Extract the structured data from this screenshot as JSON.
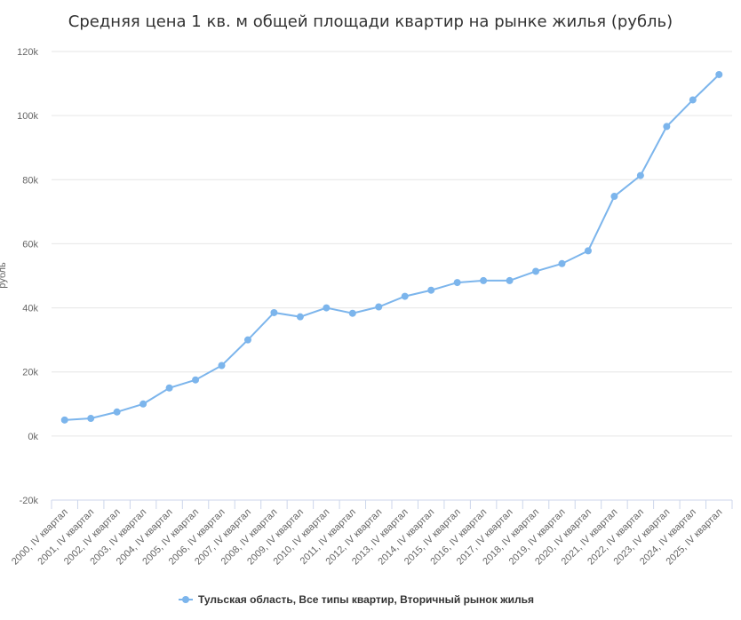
{
  "chart_data": {
    "type": "line",
    "title": "Средняя цена 1 кв. м общей площади квартир на рынке жилья (рубль)",
    "ylabel": "рубль",
    "ylim": [
      -20000,
      120000
    ],
    "yticks": [
      -20000,
      0,
      20000,
      40000,
      60000,
      80000,
      100000,
      120000
    ],
    "ytick_labels": [
      "-20k",
      "0k",
      "20k",
      "40k",
      "60k",
      "80k",
      "100k",
      "120k"
    ],
    "grid": true,
    "legend_position": "bottom-center",
    "categories": [
      "2000, IV квартал",
      "2001, IV квартал",
      "2002, IV квартал",
      "2003, IV квартал",
      "2004, IV квартал",
      "2005, IV квартал",
      "2006, IV квартал",
      "2007, IV квартал",
      "2008, IV квартал",
      "2009, IV квартал",
      "2010, IV квартал",
      "2011, IV квартал",
      "2012, IV квартал",
      "2013, IV квартал",
      "2014, IV квартал",
      "2015, IV квартал",
      "2016, IV квартал",
      "2017, IV квартал",
      "2018, IV квартал",
      "2019, IV квартал",
      "2020, IV квартал",
      "2021, IV квартал",
      "2022, IV квартал",
      "2023, IV квартал",
      "2024, IV квартал",
      "2025, IV квартал"
    ],
    "series": [
      {
        "name": "Тульская область, Все типы квартир, Вторичный рынок жилья",
        "color": "#7cb5ec",
        "values": [
          5000,
          5500,
          7500,
          10000,
          15000,
          17500,
          22000,
          30000,
          38500,
          37200,
          40000,
          38300,
          40300,
          43600,
          45500,
          47900,
          48500,
          48500,
          51400,
          53800,
          57800,
          74800,
          81300,
          96600,
          104900,
          112800
        ]
      }
    ]
  }
}
